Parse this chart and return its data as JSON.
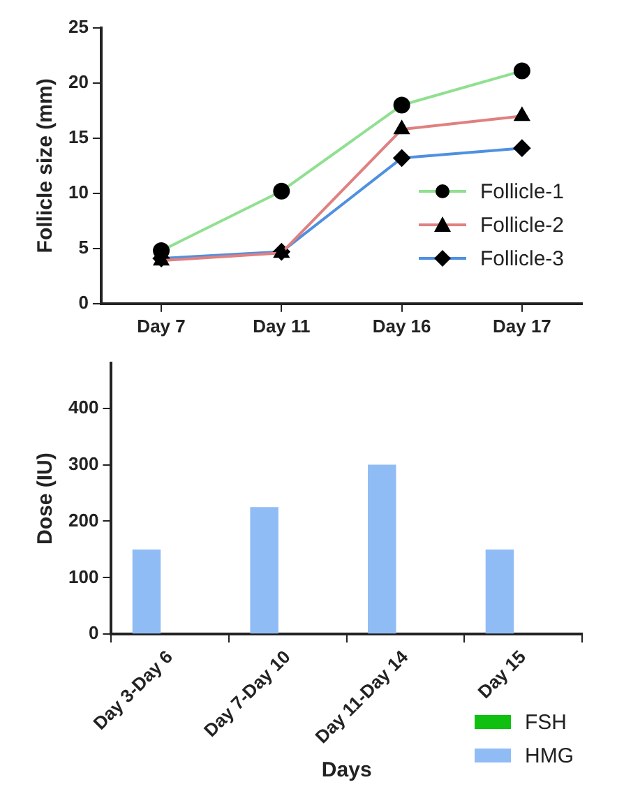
{
  "chart_data": [
    {
      "type": "line",
      "categories": [
        "Day 7",
        "Day 11",
        "Day 16",
        "Day 17"
      ],
      "ylabel": "Follicle size (mm)",
      "ylim": [
        0,
        25
      ],
      "yticks": [
        0,
        5,
        10,
        15,
        20,
        25
      ],
      "grid": false,
      "legend": "right",
      "series": [
        {
          "name": "Follicle-1",
          "color": "#90e090",
          "marker": "circle",
          "values": [
            4.8,
            10.2,
            18,
            21.1
          ]
        },
        {
          "name": "Follicle-2",
          "color": "#e08080",
          "marker": "triangle",
          "values": [
            3.9,
            4.6,
            15.8,
            17
          ]
        },
        {
          "name": "Follicle-3",
          "color": "#5090e0",
          "marker": "diamond",
          "values": [
            4.1,
            4.7,
            13.2,
            14.1
          ]
        }
      ]
    },
    {
      "type": "bar",
      "categories": [
        "Day 3-Day 6",
        "Day 7-Day 10",
        "Day 11-Day 14",
        "Day 15"
      ],
      "xlabel": "Days",
      "ylabel": "Dose (IU)",
      "ylim": [
        0,
        480
      ],
      "yticks": [
        0,
        100,
        200,
        300,
        400
      ],
      "grid": false,
      "legend": "bottom right",
      "series": [
        {
          "name": "FSH",
          "color": "#10c010",
          "values": [
            null,
            null,
            null,
            null
          ]
        },
        {
          "name": "HMG",
          "color": "#90bcf5",
          "values": [
            150,
            225,
            300,
            150
          ]
        }
      ]
    }
  ]
}
